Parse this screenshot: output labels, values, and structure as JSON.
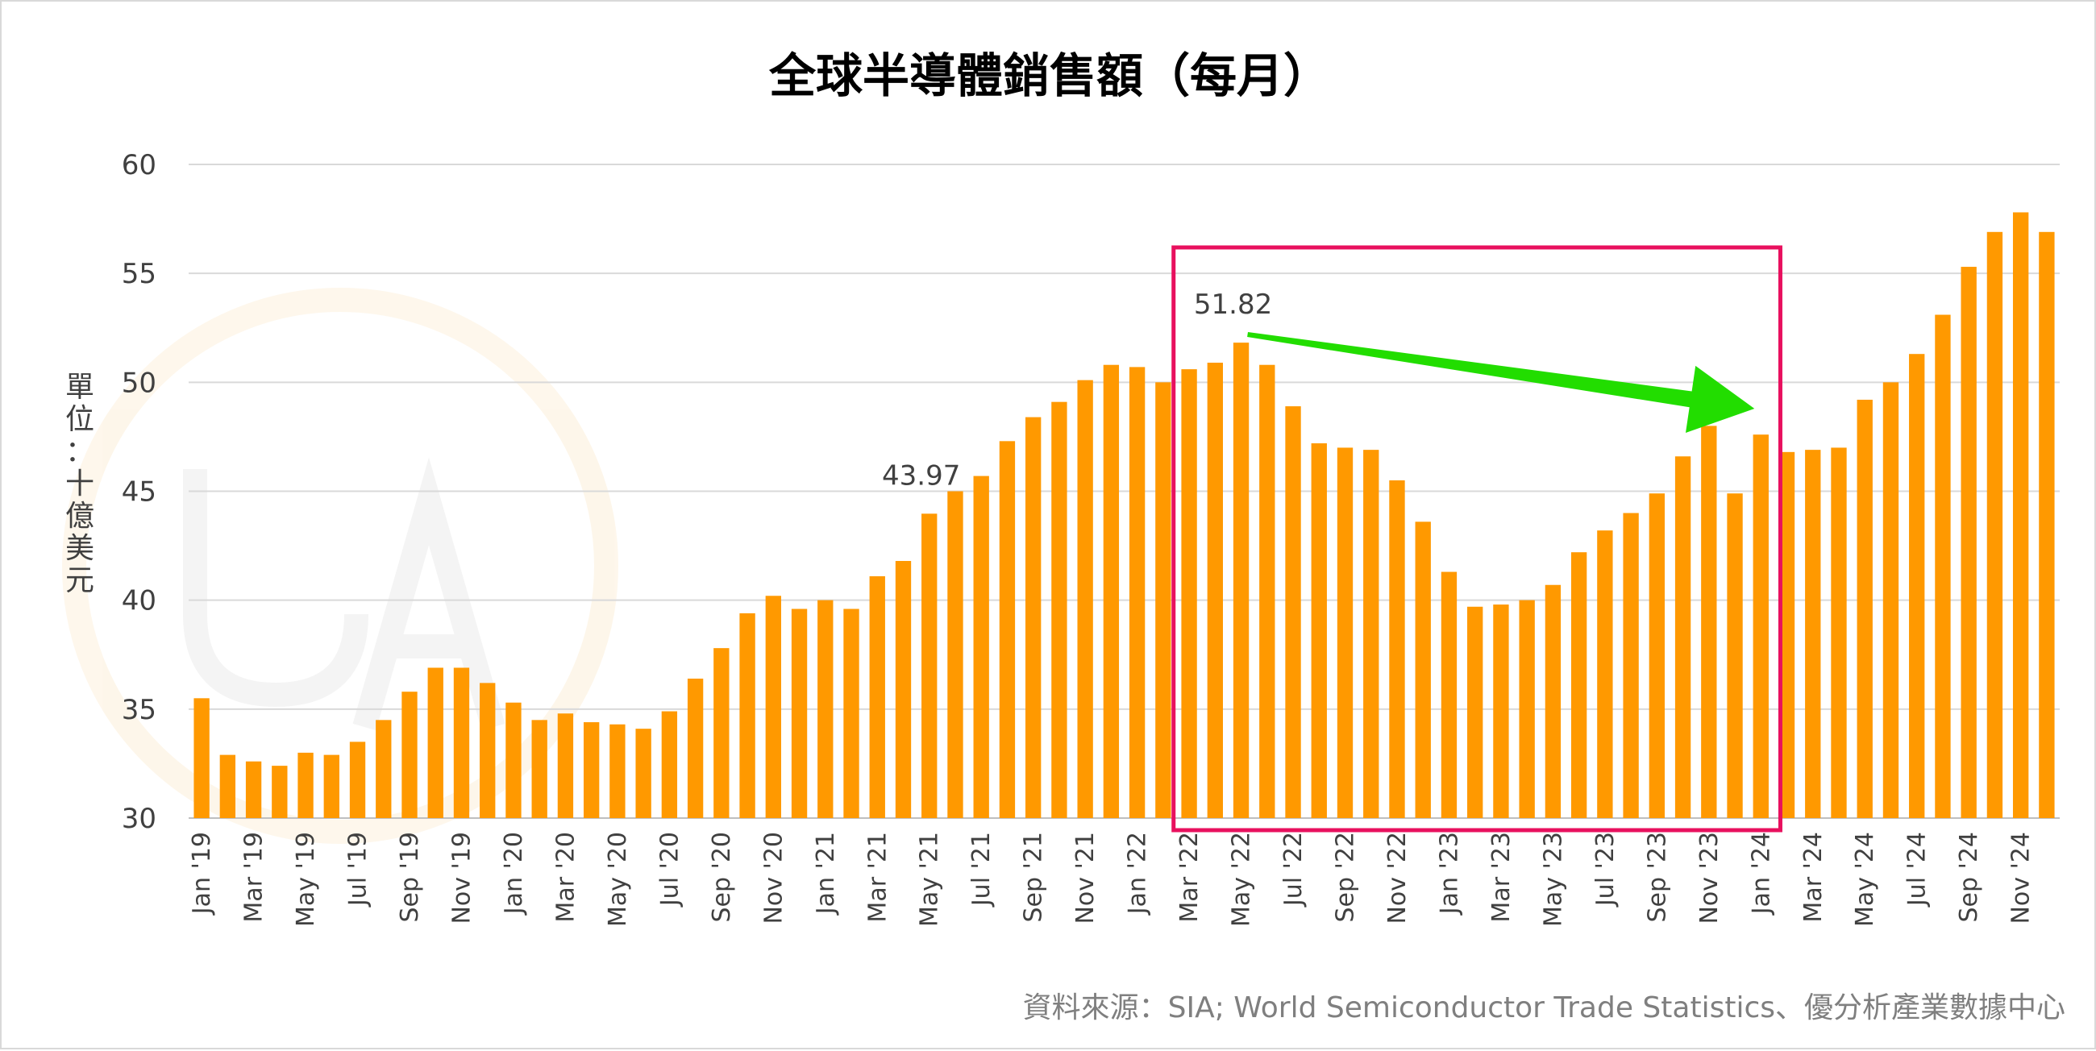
{
  "chart_data": {
    "type": "bar",
    "title": "全球半導體銷售額（每月）",
    "ylabel": "單位：十億美元",
    "ylim": [
      30,
      60
    ],
    "yticks": [
      30,
      35,
      40,
      45,
      50,
      55,
      60
    ],
    "grid": true,
    "bar_color": "#FF9900",
    "categories": [
      "Jan '19",
      "Feb '19",
      "Mar '19",
      "Apr '19",
      "May '19",
      "Jun '19",
      "Jul '19",
      "Aug '19",
      "Sep '19",
      "Oct '19",
      "Nov '19",
      "Dec '19",
      "Jan '20",
      "Feb '20",
      "Mar '20",
      "Apr '20",
      "May '20",
      "Jun '20",
      "Jul '20",
      "Aug '20",
      "Sep '20",
      "Oct '20",
      "Nov '20",
      "Dec '20",
      "Jan '21",
      "Feb '21",
      "Mar '21",
      "Apr '21",
      "May '21",
      "Jun '21",
      "Jul '21",
      "Aug '21",
      "Sep '21",
      "Oct '21",
      "Nov '21",
      "Dec '21",
      "Jan '22",
      "Feb '22",
      "Mar '22",
      "Apr '22",
      "May '22",
      "Jun '22",
      "Jul '22",
      "Aug '22",
      "Sep '22",
      "Oct '22",
      "Nov '22",
      "Dec '22",
      "Jan '23",
      "Feb '23",
      "Mar '23",
      "Apr '23",
      "May '23",
      "Jun '23",
      "Jul '23",
      "Aug '23",
      "Sep '23",
      "Oct '23",
      "Nov '23",
      "Dec '23",
      "Jan '24",
      "Feb '24",
      "Mar '24",
      "Apr '24",
      "May '24",
      "Jun '24",
      "Jul '24",
      "Aug '24",
      "Sep '24",
      "Oct '24",
      "Nov '24",
      "Dec '24"
    ],
    "tick_labels_shown": [
      "Jan '19",
      "Mar '19",
      "May '19",
      "Jul '19",
      "Sep '19",
      "Nov '19",
      "Jan '20",
      "Mar '20",
      "May '20",
      "Jul '20",
      "Sep '20",
      "Nov '20",
      "Jan '21",
      "Mar '21",
      "May '21",
      "Jul '21",
      "Sep '21",
      "Nov '21",
      "Jan '22",
      "Mar '22",
      "May '22",
      "Jul '22",
      "Sep '22",
      "Nov '22",
      "Jan '23",
      "Mar '23",
      "May '23",
      "Jul '23",
      "Sep '23",
      "Nov '23",
      "Jan '24",
      "Mar '24",
      "May '24",
      "Jul '24",
      "Sep '24",
      "Nov '24"
    ],
    "values": [
      35.5,
      32.9,
      32.6,
      32.4,
      33.0,
      32.9,
      33.5,
      34.5,
      35.8,
      36.9,
      36.9,
      36.2,
      35.3,
      34.5,
      34.8,
      34.4,
      34.3,
      34.1,
      34.9,
      36.4,
      37.8,
      39.4,
      40.2,
      39.6,
      40.0,
      39.6,
      41.1,
      41.8,
      43.97,
      45.0,
      45.7,
      47.3,
      48.4,
      49.1,
      50.1,
      50.8,
      50.7,
      50.0,
      50.6,
      50.9,
      51.82,
      50.8,
      48.9,
      47.2,
      47.0,
      46.9,
      45.5,
      43.6,
      41.3,
      39.7,
      39.8,
      40.0,
      40.7,
      42.2,
      43.2,
      44.0,
      44.9,
      46.6,
      48.0,
      44.9,
      47.6,
      46.8,
      46.9,
      47.0,
      49.2,
      50.0,
      51.3,
      53.1,
      55.3,
      56.9,
      57.8,
      56.9
    ],
    "data_labels": [
      {
        "category": "May '21",
        "text": "43.97"
      },
      {
        "category": "May '22",
        "text": "51.82"
      }
    ],
    "annotations": {
      "highlight_box": {
        "from": "Mar '22",
        "to": "Jan '24",
        "color": "#E8105E"
      },
      "arrow": {
        "from": "May '22",
        "to": "Jan '24",
        "color": "#22DD00"
      }
    }
  },
  "source_note": "資料來源：SIA; World Semiconductor Trade Statistics、優分析產業數據中心"
}
